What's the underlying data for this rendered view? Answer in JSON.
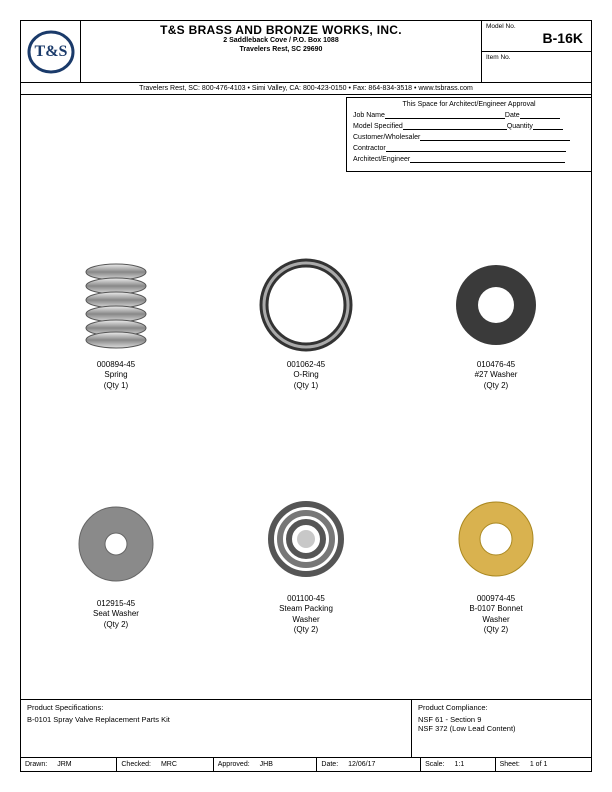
{
  "company": {
    "name": "T&S BRASS AND BRONZE WORKS, INC.",
    "addr1": "2 Saddleback Cove / P.O. Box 1088",
    "addr2": "Travelers Rest, SC  29690",
    "contact": "Travelers Rest, SC: 800-476-4103 • Simi Valley, CA: 800-423-0150 • Fax: 864-834-3518 • www.tsbrass.com"
  },
  "header": {
    "model_label": "Model No.",
    "model": "B-16K",
    "item_label": "Item No."
  },
  "approval": {
    "title": "This Space for Architect/Engineer Approval",
    "f_job": "Job Name",
    "f_date": "Date",
    "f_model": "Model Specified",
    "f_qty": "Quantity",
    "f_cust": "Customer/Wholesaler",
    "f_contr": "Contractor",
    "f_arch": "Architect/Engineer"
  },
  "parts": [
    {
      "num": "000894-45",
      "name": "Spring",
      "qty": "(Qty 1)",
      "icon": "spring"
    },
    {
      "num": "001062-45",
      "name": "O-Ring",
      "qty": "(Qty 1)",
      "icon": "oring"
    },
    {
      "num": "010476-45",
      "name": "#27 Washer",
      "qty": "(Qty 2)",
      "icon": "darkwasher"
    },
    {
      "num": "012915-45",
      "name": "Seat Washer",
      "qty": "(Qty 2)",
      "icon": "graywasher"
    },
    {
      "num": "001100-45",
      "name": "Steam Packing\nWasher",
      "qty": "(Qty 2)",
      "icon": "packingwasher"
    },
    {
      "num": "000974-45",
      "name": "B-0107 Bonnet\nWasher",
      "qty": "(Qty 2)",
      "icon": "bonnetwasher"
    }
  ],
  "spec": {
    "l_label": "Product Specifications:",
    "l_text": "B-0101 Spray Valve Replacement Parts Kit",
    "r_label": "Product Compliance:",
    "r_text1": "NSF 61 - Section 9",
    "r_text2": "NSF 372 (Low Lead Content)"
  },
  "tblock": {
    "drawn_l": "Drawn:",
    "drawn_v": "JRM",
    "checked_l": "Checked:",
    "checked_v": "MRC",
    "approved_l": "Approved:",
    "approved_v": "JHB",
    "date_l": "Date:",
    "date_v": "12/06/17",
    "scale_l": "Scale:",
    "scale_v": "1:1",
    "sheet_l": "Sheet:",
    "sheet_v": "1   of   1"
  },
  "colors": {
    "dark": "#3a3a3a",
    "gray": "#8a8a8a",
    "gold": "#d9b24f",
    "steel": "#b8b8b8"
  }
}
